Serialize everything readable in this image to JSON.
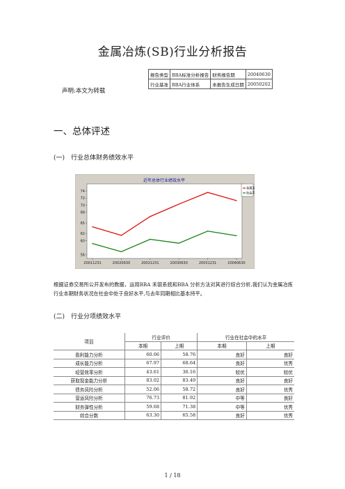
{
  "doc": {
    "title": "金属冶炼(SB)行业分析报告",
    "statement": "声明:本文为转载",
    "section1_heading": "一、总体评述",
    "sub1_heading": "(一)　行业总体财务绩效水平",
    "paragraph": "根据证券交易所公开发布的数据，运用BBA 禾银系统和BBA 分析方法对其进行综合分析,我们认为金属冶炼行业本期财务状况在社会中处于良好水平,与去年同期相比基本持平。",
    "sub2_heading": "(二)　行业分项绩效水平",
    "page_number": "1 / 18"
  },
  "info_table": [
    [
      "报告类型",
      "BBA标准分析报告",
      "财务报告期",
      "20040630"
    ],
    [
      "行业基准",
      "BBA行业体系",
      "本报告生成日期",
      "20050202"
    ]
  ],
  "chart_data": {
    "type": "line",
    "title": "近年总体行业绩效水平",
    "categories": [
      "20011231",
      "20020630",
      "20021231",
      "20030630",
      "20031231",
      "20040630"
    ],
    "y_ticks": [
      56,
      60,
      62,
      65,
      68,
      70,
      72,
      74
    ],
    "ylim": [
      55,
      76
    ],
    "series": [
      {
        "name": "金属冶炼",
        "color": "#e01010",
        "values": [
          63.9,
          61.5,
          66.8,
          70.3,
          73.6,
          71.3
        ]
      },
      {
        "name": "社会平均",
        "color": "#108010",
        "values": [
          59.2,
          56.9,
          60.4,
          59.3,
          62.7,
          61.4
        ]
      }
    ],
    "legend_position": "top-right",
    "grid": false
  },
  "score_table": {
    "header_item": "项目",
    "group1": "行业评价",
    "group2": "行业在社会中的水平",
    "sub_headers": [
      "本期",
      "上期",
      "本期",
      "上期"
    ],
    "rows": [
      [
        "盈利能力分析",
        "60.06",
        "58.76",
        "良好",
        "良好"
      ],
      [
        "成长能力分析",
        "67.97",
        "68.64",
        "良好",
        "优秀"
      ],
      [
        "经营效率分析",
        "43.61",
        "36.16",
        "较优",
        "较优"
      ],
      [
        "获取现金能力分析",
        "83.02",
        "83.49",
        "良好",
        "良好"
      ],
      [
        "债务风险分析",
        "52.06",
        "58.72",
        "良好",
        "优秀"
      ],
      [
        "营运风险分析",
        "76.73",
        "81.92",
        "中等",
        "良好"
      ],
      [
        "财务弹性分析",
        "59.68",
        "71.38",
        "中等",
        "优秀"
      ],
      [
        "综合分数",
        "63.30",
        "65.58",
        "良好",
        "优秀"
      ]
    ]
  }
}
